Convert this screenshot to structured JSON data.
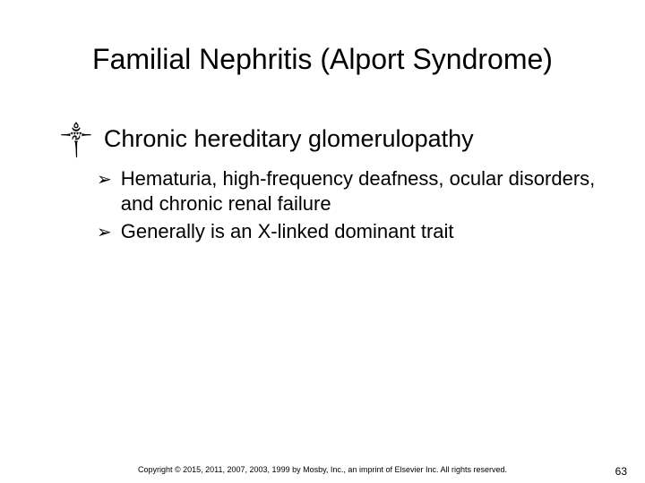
{
  "slide": {
    "title": "Familial Nephritis (Alport Syndrome)",
    "title_fontsize": 32,
    "background_color": "#ffffff",
    "text_color": "#000000"
  },
  "level1": {
    "bullet_glyph": "༒",
    "text": "Chronic hereditary glomerulopathy",
    "fontsize": 27
  },
  "level2": {
    "bullet_glyph": "➢",
    "fontsize": 22,
    "items": [
      {
        "text": "Hematuria, high-frequency deafness, ocular disorders, and chronic renal failure"
      },
      {
        "text": "Generally is an X-linked dominant trait"
      }
    ]
  },
  "footer": {
    "copyright": "Copyright © 2015, 2011, 2007, 2003, 1999 by Mosby, Inc., an imprint of Elsevier Inc. All rights reserved.",
    "page_number": "63",
    "copyright_fontsize": 9,
    "pagenum_fontsize": 12
  }
}
